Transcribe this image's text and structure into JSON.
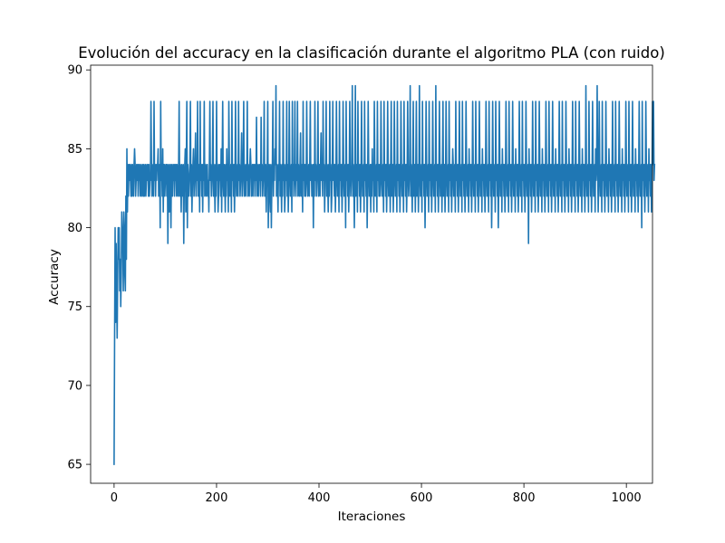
{
  "chart_data": {
    "type": "line",
    "title": "Evolución del accuracy en la clasificación durante el algoritmo PLA (con ruido)",
    "xlabel": "Iteraciones",
    "ylabel": "Accuracy",
    "xlim": [
      -45.8,
      1051
    ],
    "ylim": [
      63.8,
      90.3
    ],
    "xticks": [
      0,
      200,
      400,
      600,
      800,
      1000
    ],
    "yticks": [
      65,
      70,
      75,
      80,
      85,
      90
    ],
    "xtick_labels": [
      "0",
      "200",
      "400",
      "600",
      "800",
      "1000"
    ],
    "ytick_labels": [
      "65",
      "70",
      "75",
      "80",
      "85",
      "90"
    ],
    "grid": false,
    "colors": {
      "line": "#1f77b4"
    },
    "series": [
      {
        "x_start": 0,
        "x_step": 1,
        "values": [
          65,
          73,
          80,
          74,
          79,
          76,
          73,
          77,
          80,
          78,
          80,
          76,
          78,
          75,
          77,
          81,
          80,
          79,
          76,
          81,
          80,
          77,
          76,
          82,
          78,
          85,
          81,
          84,
          82,
          84,
          83,
          84,
          83,
          82,
          84,
          82,
          84,
          83,
          82,
          84,
          85,
          84,
          82,
          83,
          84,
          83,
          84,
          82,
          84,
          83,
          84,
          82,
          83,
          84,
          82,
          83,
          84,
          82,
          84,
          82,
          83,
          84,
          82,
          83,
          84,
          83,
          84,
          82,
          84,
          82,
          83,
          83,
          88,
          84,
          82,
          83,
          84,
          82,
          88,
          83,
          84,
          82,
          84,
          83,
          84,
          84,
          85,
          82,
          83,
          84,
          80,
          88,
          83,
          84,
          82,
          85,
          81,
          84,
          84,
          82,
          83,
          84,
          84,
          82,
          84,
          79,
          83,
          84,
          81,
          83,
          84,
          80,
          84,
          83,
          82,
          84,
          83,
          84,
          82,
          84,
          83,
          84,
          82,
          84,
          83,
          82,
          84,
          88,
          82,
          84,
          83,
          81,
          84,
          83,
          82,
          84,
          79,
          83,
          84,
          85,
          81,
          84,
          88,
          80,
          84,
          83,
          82,
          83,
          84,
          88,
          82,
          84,
          81,
          83,
          84,
          85,
          82,
          83,
          84,
          86,
          82,
          84,
          83,
          88,
          82,
          83,
          84,
          81,
          88,
          83,
          84,
          82,
          84,
          81,
          84,
          83,
          88,
          82,
          84,
          83,
          82,
          84,
          84,
          82,
          83,
          81,
          84,
          88,
          83,
          84,
          82,
          83,
          84,
          88,
          82,
          84,
          83,
          81,
          84,
          82,
          88,
          83,
          84,
          81,
          82,
          84,
          83,
          84,
          82,
          85,
          81,
          84,
          88,
          83,
          82,
          84,
          83,
          81,
          84,
          82,
          85,
          83,
          84,
          81,
          88,
          84,
          82,
          83,
          84,
          81,
          88,
          83,
          84,
          82,
          84,
          81,
          83,
          88,
          84,
          82,
          83,
          84,
          82,
          88,
          83,
          84,
          82,
          83,
          84,
          86,
          82,
          83,
          84,
          88,
          82,
          84,
          83,
          82,
          84,
          83,
          88,
          82,
          84,
          83,
          82,
          84,
          85,
          84,
          82,
          83,
          84,
          82,
          84,
          83,
          84,
          82,
          84,
          83,
          87,
          82,
          84,
          83,
          82,
          84,
          83,
          84,
          82,
          87,
          83,
          84,
          82,
          83,
          84,
          88,
          82,
          83,
          84,
          81,
          83,
          84,
          88,
          80,
          83,
          84,
          82,
          81,
          84,
          80,
          83,
          84,
          88,
          82,
          84,
          83,
          85,
          84,
          89,
          82,
          84,
          83,
          81,
          84,
          83,
          88,
          82,
          84,
          83,
          81,
          84,
          82,
          88,
          83,
          84,
          81,
          82,
          84,
          83,
          88,
          82,
          84,
          81,
          83,
          88,
          84,
          82,
          83,
          84,
          81,
          88,
          83,
          84,
          82,
          84,
          88,
          83,
          82,
          84,
          83,
          88,
          82,
          84,
          83,
          82,
          84,
          86,
          82,
          83,
          84,
          81,
          88,
          83,
          84,
          82,
          84,
          82,
          83,
          88,
          84,
          82,
          83,
          84,
          82,
          84,
          88,
          83,
          84,
          82,
          83,
          84,
          80,
          84,
          82,
          88,
          83,
          84,
          82,
          83,
          84,
          88,
          82,
          83,
          84,
          82,
          84,
          86,
          83,
          84,
          82,
          88,
          83,
          84,
          81,
          83,
          84,
          88,
          82,
          84,
          83,
          81,
          84,
          82,
          88,
          83,
          84,
          81,
          82,
          84,
          88,
          83,
          84,
          82,
          84,
          81,
          83,
          88,
          84,
          82,
          83,
          84,
          81,
          88,
          83,
          84,
          82,
          84,
          81,
          83,
          88,
          84,
          82,
          83,
          84,
          80,
          88,
          83,
          84,
          82,
          84,
          81,
          83,
          88,
          84,
          82,
          83,
          84,
          89,
          82,
          84,
          83,
          80,
          84,
          89,
          82,
          83,
          84,
          81,
          88,
          83,
          84,
          82,
          84,
          81,
          83,
          88,
          84,
          82,
          83,
          84,
          81,
          88,
          83,
          84,
          82,
          84,
          80,
          83,
          88,
          84,
          82,
          83,
          84,
          81,
          84,
          82,
          85,
          83,
          84,
          81,
          88,
          84,
          82,
          83,
          84,
          81,
          88,
          83,
          84,
          82,
          84,
          82,
          83,
          88,
          84,
          82,
          83,
          84,
          81,
          88,
          83,
          84,
          82,
          84,
          81,
          83,
          88,
          84,
          82,
          83,
          84,
          81,
          84,
          88,
          82,
          83,
          84,
          81,
          83,
          88,
          84,
          82,
          83,
          84,
          81,
          88,
          83,
          84,
          82,
          84,
          81,
          83,
          88,
          84,
          82,
          83,
          84,
          81,
          88,
          83,
          84,
          82,
          84,
          81,
          83,
          88,
          84,
          82,
          83,
          84,
          89,
          82,
          84,
          83,
          81,
          84,
          88,
          82,
          83,
          84,
          81,
          84,
          88,
          82,
          83,
          84,
          81,
          83,
          89,
          84,
          82,
          83,
          84,
          81,
          88,
          83,
          84,
          82,
          84,
          80,
          83,
          88,
          84,
          82,
          83,
          84,
          81,
          88,
          83,
          84,
          82,
          84,
          81,
          83,
          88,
          84,
          82,
          83,
          84,
          81,
          89,
          83,
          84,
          82,
          84,
          81,
          83,
          88,
          84,
          82,
          83,
          84,
          81,
          84,
          88,
          82,
          83,
          84,
          81,
          83,
          88,
          84,
          82,
          83,
          84,
          81,
          88,
          83,
          84,
          82,
          84,
          81,
          83,
          85,
          84,
          82,
          83,
          84,
          81,
          88,
          83,
          84,
          82,
          84,
          81,
          83,
          88,
          84,
          82,
          83,
          84,
          81,
          88,
          83,
          84,
          82,
          84,
          81,
          83,
          88,
          84,
          82,
          83,
          84,
          81,
          85,
          83,
          84,
          82,
          84,
          81,
          83,
          88,
          84,
          82,
          83,
          84,
          81,
          88,
          83,
          84,
          82,
          84,
          81,
          83,
          88,
          84,
          82,
          83,
          84,
          81,
          85,
          83,
          84,
          82,
          84,
          81,
          83,
          88,
          84,
          82,
          83,
          84,
          81,
          88,
          83,
          84,
          82,
          84,
          80,
          83,
          88,
          84,
          82,
          83,
          84,
          81,
          88,
          83,
          84,
          82,
          84,
          80,
          83,
          88,
          84,
          82,
          83,
          84,
          81,
          85,
          83,
          84,
          82,
          84,
          81,
          83,
          88,
          84,
          82,
          83,
          84,
          81,
          88,
          83,
          84,
          82,
          84,
          81,
          83,
          88,
          84,
          82,
          83,
          84,
          81,
          85,
          83,
          84,
          82,
          84,
          81,
          83,
          88,
          84,
          82,
          83,
          84,
          81,
          88,
          83,
          84,
          82,
          84,
          81,
          83,
          88,
          84,
          82,
          83,
          84,
          79,
          85,
          83,
          84,
          82,
          84,
          81,
          83,
          88,
          84,
          82,
          83,
          84,
          81,
          88,
          83,
          84,
          82,
          84,
          81,
          83,
          88,
          84,
          82,
          83,
          84,
          81,
          85,
          83,
          84,
          82,
          84,
          81,
          83,
          88,
          84,
          82,
          83,
          84,
          81,
          88,
          83,
          84,
          82,
          84,
          81,
          83,
          88,
          84,
          82,
          83,
          84,
          81,
          85,
          83,
          84,
          82,
          84,
          81,
          83,
          88,
          84,
          82,
          83,
          84,
          81,
          88,
          83,
          84,
          82,
          84,
          81,
          83,
          88,
          84,
          82,
          83,
          84,
          81,
          85,
          83,
          84,
          82,
          84,
          81,
          83,
          88,
          84,
          82,
          83,
          84,
          81,
          88,
          83,
          84,
          82,
          84,
          81,
          83,
          88,
          84,
          82,
          83,
          84,
          81,
          85,
          83,
          84,
          82,
          84,
          81,
          83,
          89,
          84,
          82,
          83,
          84,
          81,
          88,
          83,
          84,
          82,
          84,
          81,
          83,
          88,
          84,
          82,
          83,
          84,
          81,
          85,
          83,
          84,
          89,
          84,
          81,
          83,
          88,
          84,
          82,
          83,
          84,
          81,
          88,
          83,
          84,
          82,
          84,
          81,
          83,
          88,
          84,
          82,
          83,
          84,
          81,
          85,
          83,
          84,
          82,
          84,
          81,
          83,
          88,
          84,
          82,
          83,
          84,
          81,
          88,
          83,
          84,
          82,
          84,
          81,
          83,
          88,
          84,
          82,
          83,
          84,
          81,
          85,
          83,
          84,
          82,
          84,
          81,
          83,
          88,
          84,
          82,
          83,
          84,
          81,
          88,
          83,
          84,
          82,
          84,
          81,
          83,
          88,
          84,
          82,
          83,
          84,
          81,
          85,
          83,
          84,
          82,
          84,
          81,
          83,
          88,
          84,
          82,
          83,
          84,
          80,
          88,
          83,
          84,
          82,
          84,
          81,
          83,
          88,
          84,
          82,
          83,
          84,
          81,
          85,
          83,
          84,
          82,
          84,
          81,
          83,
          88,
          84,
          88,
          83,
          84
        ]
      }
    ]
  }
}
